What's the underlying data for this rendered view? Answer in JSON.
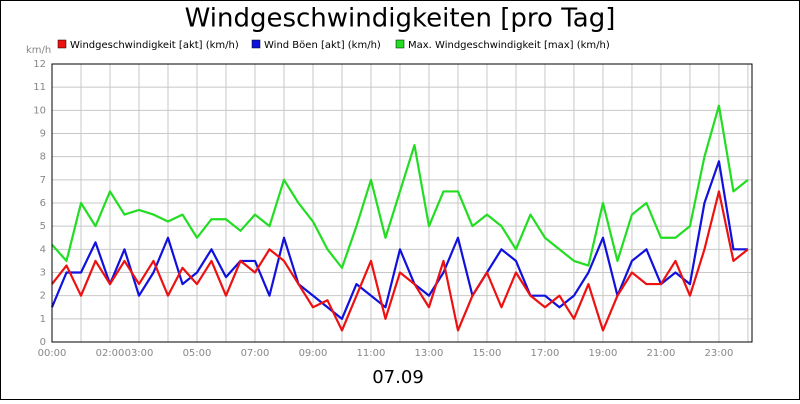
{
  "chart_data": {
    "type": "line",
    "title": "Windgeschwindigkeiten [pro Tag]",
    "y_unit": "km/h",
    "x_label": "07.09",
    "x": [
      0,
      0.5,
      1,
      1.5,
      2,
      2.5,
      3,
      3.5,
      4,
      4.5,
      5,
      5.5,
      6,
      6.5,
      7,
      7.5,
      8,
      8.5,
      9,
      9.5,
      10,
      10.5,
      11,
      11.5,
      12,
      12.5,
      13,
      13.5,
      14,
      14.5,
      15,
      15.5,
      16,
      16.5,
      17,
      17.5,
      18,
      18.5,
      19,
      19.5,
      20,
      20.5,
      21,
      21.5,
      22,
      22.5,
      23,
      23.5,
      24
    ],
    "series": [
      {
        "name": "Windgeschwindigkeit [akt] (km/h)",
        "color": "#ee1111",
        "values": [
          2.5,
          3.3,
          2,
          3.5,
          2.5,
          3.5,
          2.5,
          3.5,
          2,
          3.2,
          2.5,
          3.5,
          2,
          3.5,
          3,
          4,
          3.5,
          2.5,
          1.5,
          1.8,
          0.5,
          2,
          3.5,
          1,
          3,
          2.5,
          1.5,
          3.5,
          0.5,
          2,
          3,
          1.5,
          3,
          2,
          1.5,
          2,
          1,
          2.5,
          0.5,
          2,
          3,
          2.5,
          2.5,
          3.5,
          2,
          4,
          6.5,
          3.5,
          4
        ]
      },
      {
        "name": "Wind Böen [akt] (km/h)",
        "color": "#1111dd",
        "values": [
          1.5,
          3,
          3,
          4.3,
          2.5,
          4,
          2,
          3,
          4.5,
          2.5,
          3,
          4,
          2.8,
          3.5,
          3.5,
          2,
          4.5,
          2.5,
          2,
          1.5,
          1,
          2.5,
          2,
          1.5,
          4,
          2.5,
          2,
          3,
          4.5,
          2,
          3,
          4,
          3.5,
          2,
          2,
          1.5,
          2,
          3,
          4.5,
          2,
          3.5,
          4,
          2.5,
          3,
          2.5,
          6,
          7.8,
          4,
          4
        ]
      },
      {
        "name": "Max. Windgeschwindigkeit [max] (km/h)",
        "color": "#22dd22",
        "values": [
          4.2,
          3.5,
          6,
          5,
          6.5,
          5.5,
          5.7,
          5.5,
          5.2,
          5.5,
          4.5,
          5.3,
          5.3,
          4.8,
          5.5,
          5,
          7,
          6,
          5.2,
          4,
          3.2,
          5,
          7,
          4.5,
          6.5,
          8.5,
          5,
          6.5,
          6.5,
          5,
          5.5,
          5,
          4,
          5.5,
          4.5,
          4,
          3.5,
          3.3,
          6,
          3.5,
          5.5,
          6,
          4.5,
          4.5,
          5,
          8,
          10.2,
          6.5,
          7
        ]
      }
    ],
    "xlim": [
      0,
      24.14
    ],
    "ylim": [
      0,
      12
    ],
    "xticks": [
      {
        "value": 0,
        "label": "00:00"
      },
      {
        "value": 1,
        "label": null
      },
      {
        "value": 2,
        "label": "02:00"
      },
      {
        "value": 3,
        "label": "03:00"
      },
      {
        "value": 4,
        "label": null
      },
      {
        "value": 5,
        "label": "05:00"
      },
      {
        "value": 6,
        "label": null
      },
      {
        "value": 7,
        "label": "07:00"
      },
      {
        "value": 8,
        "label": null
      },
      {
        "value": 9,
        "label": "09:00"
      },
      {
        "value": 10,
        "label": null
      },
      {
        "value": 11,
        "label": "11:00"
      },
      {
        "value": 12,
        "label": null
      },
      {
        "value": 13,
        "label": "13:00"
      },
      {
        "value": 14,
        "label": null
      },
      {
        "value": 15,
        "label": "15:00"
      },
      {
        "value": 16,
        "label": null
      },
      {
        "value": 17,
        "label": "17:00"
      },
      {
        "value": 18,
        "label": null
      },
      {
        "value": 19,
        "label": "19:00"
      },
      {
        "value": 20,
        "label": null
      },
      {
        "value": 21,
        "label": "21:00"
      },
      {
        "value": 22,
        "label": null
      },
      {
        "value": 23,
        "label": "23:00"
      },
      {
        "value": 24,
        "label": null
      }
    ],
    "yticks": [
      0,
      1,
      2,
      3,
      4,
      5,
      6,
      7,
      8,
      9,
      10,
      11,
      12
    ],
    "grid": true
  }
}
